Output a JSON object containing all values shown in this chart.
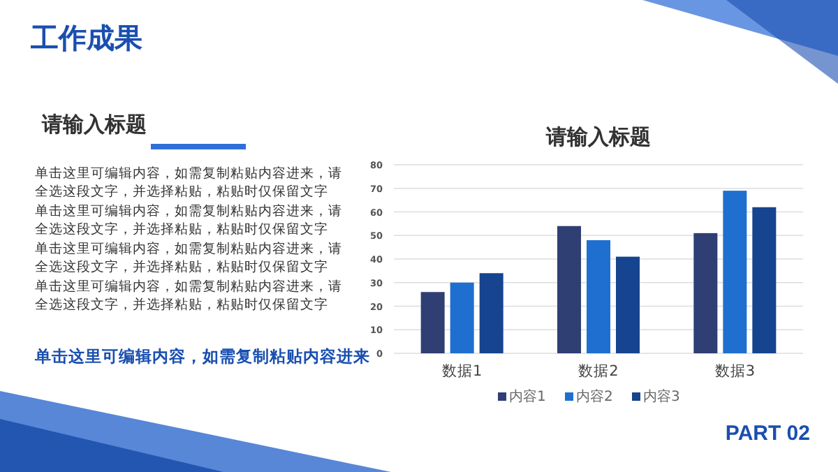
{
  "chart_data": {
    "type": "bar",
    "title": "请输入标题",
    "categories": [
      "数据1",
      "数据2",
      "数据3"
    ],
    "series": [
      {
        "name": "内容1",
        "color": "#2f3f73",
        "values": [
          26,
          54,
          51
        ]
      },
      {
        "name": "内容2",
        "color": "#1f6fd0",
        "values": [
          30,
          48,
          69
        ]
      },
      {
        "name": "内容3",
        "color": "#16448f",
        "values": [
          34,
          41,
          62
        ]
      }
    ],
    "ylim": [
      0,
      80
    ],
    "yticks": [
      0,
      10,
      20,
      30,
      40,
      50,
      60,
      70,
      80
    ],
    "grid": "y",
    "legend": "bottom",
    "annotations": [
      "工作成果",
      "请输入标题",
      "单击这里可编辑内容，如需复制粘贴内容进来，请全选这段文字，并选择粘贴，粘贴时仅保留文字",
      "单击这里可编辑内容，如需复制粘贴内容进来，请全选这段文字，并选择粘贴，粘贴时仅保留文字",
      "单击这里可编辑内容，如需复制粘贴内容进来，请全选这段文字，并选择粘贴，粘贴时仅保留文字",
      "单击这里可编辑内容，如需复制粘贴内容进来，请全选这段文字，并选择粘贴，粘贴时仅保留文字",
      "单击这里可编辑内容，如需复制粘贴内容进来",
      "PART 02"
    ]
  }
}
